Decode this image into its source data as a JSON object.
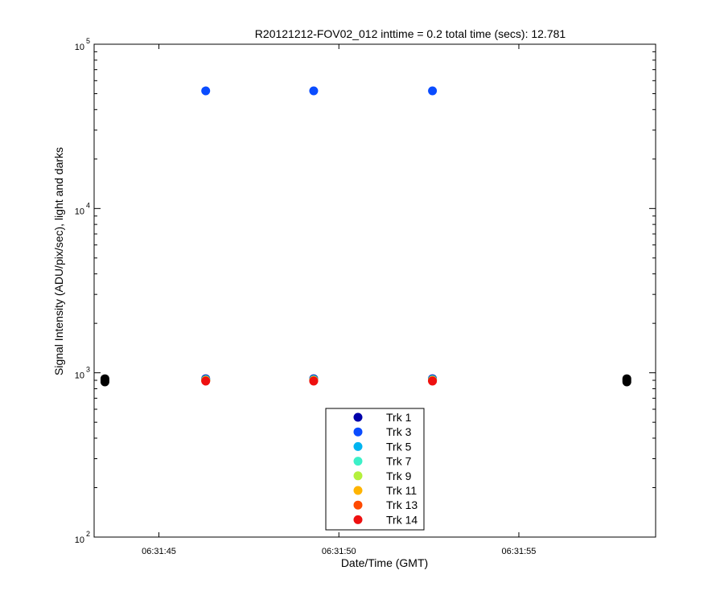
{
  "chart_data": {
    "type": "scatter",
    "title": "R20121212-FOV02_012 inttime = 0.2 total time (secs): 12.781",
    "xlabel": "Date/Time (GMT)",
    "ylabel": "Signal Intensity (ADU/pix/sec), light and darks",
    "y_scale": "log",
    "ylim": [
      100,
      100000
    ],
    "xlim": [
      "06:31:43.2",
      "06:31:58.8"
    ],
    "x_ticks": [
      "06:31:45",
      "06:31:50",
      "06:31:55"
    ],
    "y_tick_labels": [
      {
        "value": 100,
        "base": "10",
        "exp": "2"
      },
      {
        "value": 1000,
        "base": "10",
        "exp": "3"
      },
      {
        "value": 10000,
        "base": "10",
        "exp": "4"
      },
      {
        "value": 100000,
        "base": "10",
        "exp": "5"
      }
    ],
    "grid": false,
    "legend_position": "bottom-center",
    "series": [
      {
        "name": "Trk 1",
        "color": "#0000aa",
        "x": [
          "06:31:46.3",
          "06:31:49.3",
          "06:31:52.6"
        ],
        "y": [
          920,
          920,
          920
        ]
      },
      {
        "name": "Trk 3",
        "color": "#0a4cff",
        "x": [
          "06:31:46.3",
          "06:31:49.3",
          "06:31:52.6"
        ],
        "y": [
          52000,
          52000,
          52000
        ]
      },
      {
        "name": "Trk 5",
        "color": "#00b4f0",
        "x": [
          "06:31:46.3",
          "06:31:49.3",
          "06:31:52.6"
        ],
        "y": [
          910,
          910,
          910
        ]
      },
      {
        "name": "Trk 7",
        "color": "#3cf0c8",
        "x": [
          "06:31:46.3",
          "06:31:49.3",
          "06:31:52.6"
        ],
        "y": [
          905,
          905,
          905
        ]
      },
      {
        "name": "Trk 9",
        "color": "#b4f03c",
        "x": [
          "06:31:46.3",
          "06:31:49.3",
          "06:31:52.6"
        ],
        "y": [
          900,
          900,
          900
        ]
      },
      {
        "name": "Trk 11",
        "color": "#ffb400",
        "x": [
          "06:31:46.3",
          "06:31:49.3",
          "06:31:52.6"
        ],
        "y": [
          898,
          898,
          898
        ]
      },
      {
        "name": "Trk 13",
        "color": "#ff4a00",
        "x": [
          "06:31:46.3",
          "06:31:49.3",
          "06:31:52.6"
        ],
        "y": [
          895,
          895,
          895
        ]
      },
      {
        "name": "Trk 14",
        "color": "#ee1010",
        "x": [
          "06:31:46.3",
          "06:31:49.3",
          "06:31:52.6"
        ],
        "y": [
          890,
          890,
          890
        ]
      }
    ],
    "dark_points": {
      "color": "#000000",
      "x": [
        "06:31:43.5",
        "06:31:43.5",
        "06:31:43.5",
        "06:31:58.0",
        "06:31:58.0",
        "06:31:58.0"
      ],
      "y": [
        920,
        900,
        880,
        920,
        900,
        880
      ]
    }
  }
}
